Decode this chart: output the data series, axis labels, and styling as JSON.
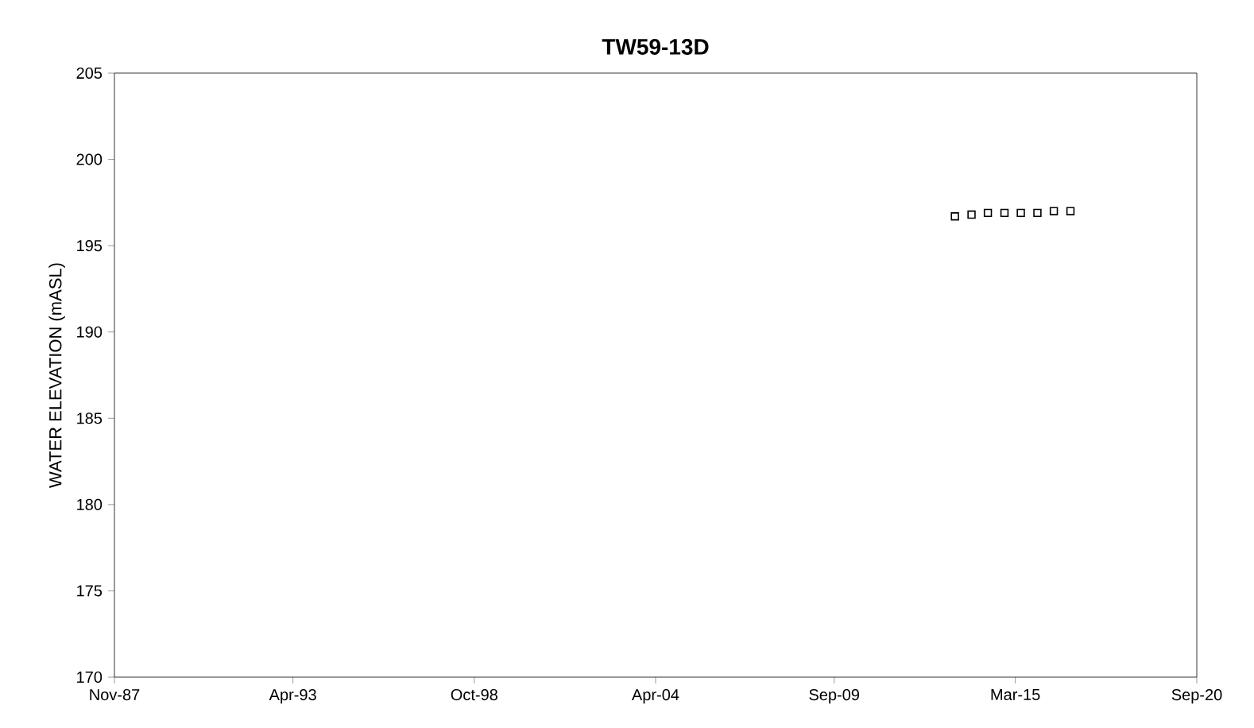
{
  "chart_data": {
    "type": "scatter",
    "title": "TW59-13D",
    "ylabel": "WATER ELEVATION (mASL)",
    "x": [
      "2013-05-01",
      "2013-11-01",
      "2014-05-01",
      "2014-11-01",
      "2015-05-01",
      "2015-11-01",
      "2016-05-01",
      "2016-11-01"
    ],
    "series": [
      {
        "color": "#000000",
        "values": [
          196.7,
          196.8,
          196.9,
          196.9,
          196.9,
          196.9,
          197.0,
          197.0
        ]
      }
    ],
    "xlim": [
      "1987-11-01",
      "2020-09-01"
    ],
    "xticks": [
      {
        "value": "1987-11-01",
        "label": "Nov-87"
      },
      {
        "value": "1993-04-01",
        "label": "Apr-93"
      },
      {
        "value": "1998-10-01",
        "label": "Oct-98"
      },
      {
        "value": "2004-04-01",
        "label": "Apr-04"
      },
      {
        "value": "2009-09-01",
        "label": "Sep-09"
      },
      {
        "value": "2015-03-01",
        "label": "Mar-15"
      },
      {
        "value": "2020-09-01",
        "label": "Sep-20"
      }
    ],
    "ylim": [
      170,
      205
    ],
    "yticks": [
      170,
      175,
      180,
      185,
      190,
      195,
      200,
      205
    ],
    "marker": "square"
  }
}
